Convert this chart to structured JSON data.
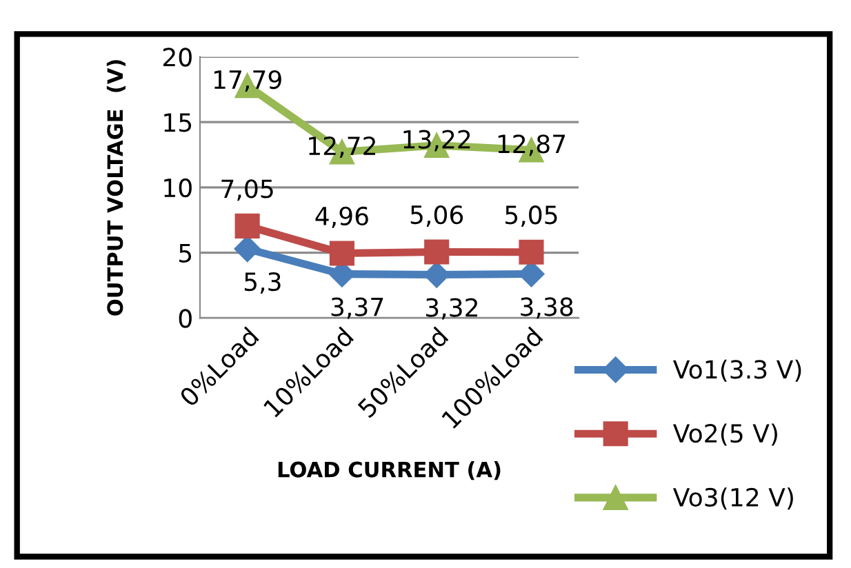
{
  "chart_data": {
    "type": "line",
    "xlabel": "LOAD CURRENT (A)",
    "ylabel": "OUTPUT VOLTAGE  (V)",
    "categories": [
      "0%Load",
      "10%Load",
      "50%Load",
      "100%Load"
    ],
    "series": [
      {
        "name": "Vo1(3.3 V)",
        "color": "#4a7ebb",
        "marker": "diamond",
        "values": [
          5.3,
          3.37,
          3.32,
          3.38
        ],
        "value_labels": [
          "5,3",
          "3,37",
          "3,32",
          "3,38"
        ]
      },
      {
        "name": "Vo2(5 V)",
        "color": "#be4b48",
        "marker": "square",
        "values": [
          7.05,
          4.96,
          5.06,
          5.05
        ],
        "value_labels": [
          "7,05",
          "4,96",
          "5,06",
          "5,05"
        ]
      },
      {
        "name": "Vo3(12 V)",
        "color": "#98b954",
        "marker": "triangle",
        "values": [
          17.79,
          12.72,
          13.22,
          12.87
        ],
        "value_labels": [
          "17,79",
          "12,72",
          "13,22",
          "12,87"
        ]
      }
    ],
    "ylim": [
      0,
      20
    ],
    "yticks": [
      0,
      5,
      10,
      15,
      20
    ],
    "grid": "y",
    "legend": "bottom right"
  }
}
